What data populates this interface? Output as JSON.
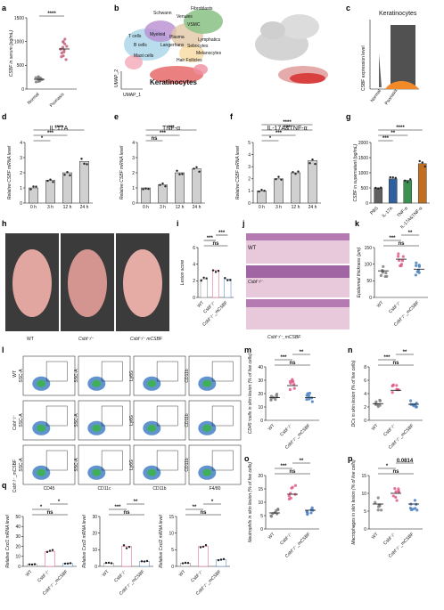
{
  "panels": {
    "a": "a",
    "b": "b",
    "c": "c",
    "d": "d",
    "e": "e",
    "f": "f",
    "g": "g",
    "h": "h",
    "i": "i",
    "j": "j",
    "k": "k",
    "l": "l",
    "m": "m",
    "n": "n",
    "o": "o",
    "p": "p",
    "q": "q"
  },
  "colors": {
    "normal": "#808080",
    "psoriasis": "#c0607a",
    "pbs": "#606060",
    "il17": "#3060a0",
    "tnf": "#3c9050",
    "combo": "#c07020",
    "wt": "#808080",
    "ko": "#e05a8a",
    "mcsbf": "#4a7fc0",
    "bar": "#d0d0d0",
    "bargray": "#e0e0e0"
  },
  "chart_data": [
    {
      "id": "a",
      "type": "scatter",
      "ylabel": "CSBF in serum  (pg/mL)",
      "categories": [
        "Normal",
        "Psoriasis"
      ],
      "ylim": [
        0,
        1500
      ],
      "yticks": [
        "0",
        "500",
        "1000",
        "1500"
      ],
      "sig": "****",
      "series": [
        {
          "values": [
            180,
            220,
            150,
            260,
            200,
            240,
            170,
            230,
            210,
            190,
            250,
            160
          ]
        },
        {
          "values": [
            620,
            780,
            950,
            1050,
            880,
            700,
            820,
            990,
            760,
            900,
            840,
            1000,
            680
          ]
        }
      ]
    },
    {
      "id": "b",
      "type": "scatter",
      "xlabel": "UMAP_1",
      "ylabel": "UMAP_2",
      "labels": [
        "Fibroblasts",
        "Schwann",
        "Venules",
        "VSMC",
        "T cells",
        "Myeloid",
        "Plasma",
        "Lymphatics",
        "B cells",
        "Langerhans",
        "Sebocytes",
        "Melanocytes",
        "Mast cells",
        "Hair Follicles",
        "Keratinocytes"
      ]
    },
    {
      "id": "c",
      "type": "scatter",
      "title": "Keratinocytes",
      "ylabel": "CSBF expression level",
      "categories": [
        "Normal",
        "Psoriasis"
      ]
    },
    {
      "id": "d",
      "type": "bar",
      "title": "IL-17A",
      "ylabel": "Relative CSBF mRNA level",
      "categories": [
        "0 h",
        "3 h",
        "12 h",
        "24 h"
      ],
      "values": [
        1.0,
        1.5,
        2.0,
        2.75
      ],
      "ylim": [
        0,
        4
      ],
      "yticks": [
        "0",
        "1",
        "2",
        "3",
        "4"
      ],
      "sig": [
        "*",
        "***",
        "****"
      ]
    },
    {
      "id": "e",
      "type": "bar",
      "title": "TNF-α",
      "ylabel": "Relative CSBF mRNA level",
      "categories": [
        "0 h",
        "3 h",
        "12 h",
        "24 h"
      ],
      "values": [
        1.0,
        1.2,
        2.0,
        2.25
      ],
      "ylim": [
        0,
        4
      ],
      "yticks": [
        "0",
        "1",
        "2",
        "3",
        "4"
      ],
      "sig": [
        "ns",
        "***",
        "***"
      ]
    },
    {
      "id": "f",
      "type": "bar",
      "title": "IL-17A&TNF-α",
      "ylabel": "Relative CSBF mRNA level",
      "categories": [
        "0 h",
        "3 h",
        "12 h",
        "24 h"
      ],
      "values": [
        1.0,
        2.0,
        2.5,
        3.5
      ],
      "ylim": [
        0,
        5
      ],
      "yticks": [
        "0",
        "1",
        "2",
        "3",
        "4",
        "5"
      ],
      "sig": [
        "*",
        "***",
        "***",
        "****"
      ]
    },
    {
      "id": "g",
      "type": "bar",
      "ylabel": "CSBF in supernatant (pg/mL)",
      "categories": [
        "PBS",
        "IL-17A",
        "TNF-α",
        "IL-17A&TNF-α"
      ],
      "values": [
        500,
        800,
        750,
        1300
      ],
      "ylim": [
        0,
        2000
      ],
      "yticks": [
        "0",
        "500",
        "1000",
        "1500",
        "2000"
      ],
      "sig": [
        "***",
        "**",
        "****"
      ]
    },
    {
      "id": "i",
      "type": "bar",
      "ylabel": "Lesion score",
      "categories": [
        "WT",
        "Csbf⁻/⁻",
        "Csbf⁻/⁻_mCSBF"
      ],
      "values": [
        2.2,
        3.3,
        2.2
      ],
      "ylim": [
        0,
        6
      ],
      "yticks": [
        "0",
        "2",
        "4",
        "6"
      ],
      "sig": [
        "ns",
        "***",
        "***",
        "****"
      ]
    },
    {
      "id": "k",
      "type": "scatter",
      "ylabel": "Epidermal thickness (μm)",
      "categories": [
        "WT",
        "Csbf⁻/⁻",
        "Csbf⁻/⁻_mCSBF"
      ],
      "means": [
        80,
        115,
        85
      ],
      "ylim": [
        0,
        150
      ],
      "yticks": [
        "0",
        "50",
        "100",
        "150"
      ],
      "sig": [
        "ns",
        "***",
        "**"
      ]
    },
    {
      "id": "m",
      "type": "scatter",
      "ylabel": "CD45⁺cells in skin lesion (% of live cells)",
      "categories": [
        "WT",
        "Csbf⁻/⁻",
        "Csbf⁻/⁻_mCSBF"
      ],
      "means": [
        17,
        26,
        17
      ],
      "ylim": [
        0,
        40
      ],
      "yticks": [
        "0",
        "10",
        "20",
        "30",
        "40"
      ],
      "sig": [
        "ns",
        "***",
        "**"
      ]
    },
    {
      "id": "n",
      "type": "scatter",
      "ylabel": "DCs in skin lesion (% of live cells)",
      "categories": [
        "WT",
        "Csbf⁻/⁻",
        "Csbf⁻/⁻_mCSBF"
      ],
      "means": [
        2.5,
        4.5,
        2.4
      ],
      "ylim": [
        0,
        8
      ],
      "yticks": [
        "0",
        "2",
        "4",
        "6",
        "8"
      ],
      "sig": [
        "ns",
        "***",
        "**"
      ]
    },
    {
      "id": "o",
      "type": "scatter",
      "ylabel": "Neutrophils in skin lesion (% of live cells)",
      "categories": [
        "WT",
        "Csbf⁻/⁻",
        "Csbf⁻/⁻_mCSBF"
      ],
      "means": [
        6,
        13,
        7
      ],
      "ylim": [
        0,
        20
      ],
      "yticks": [
        "0",
        "5",
        "10",
        "15",
        "20"
      ],
      "sig": [
        "ns",
        "***",
        "**"
      ]
    },
    {
      "id": "p",
      "type": "scatter",
      "ylabel": "Macrophages in skin lesion (% of live cells)",
      "categories": [
        "WT",
        "Csbf⁻/⁻",
        "Csbf⁻/⁻_mCSBF"
      ],
      "means": [
        7,
        10,
        7
      ],
      "ylim": [
        0,
        15
      ],
      "yticks": [
        "0",
        "5",
        "10",
        "15"
      ],
      "sig": [
        "ns",
        "*",
        "0.0814"
      ]
    },
    {
      "id": "q1",
      "type": "bar",
      "ylabel": "Relative Cxcl1 mRNA level",
      "categories": [
        "WT",
        "Csbf⁻/⁻",
        "Csbf⁻/⁻_mCSBF"
      ],
      "values": [
        2,
        15,
        3
      ],
      "ylim": [
        0,
        50
      ],
      "yticks": [
        "0",
        "10",
        "20",
        "30",
        "40",
        "50"
      ],
      "sig": [
        "ns",
        "*",
        "*"
      ]
    },
    {
      "id": "q2",
      "type": "bar",
      "ylabel": "Relative Cxcl2 mRNA level",
      "categories": [
        "WT",
        "Csbf⁻/⁻",
        "Csbf⁻/⁻_mCSBF"
      ],
      "values": [
        2,
        12,
        3
      ],
      "ylim": [
        0,
        30
      ],
      "yticks": [
        "0",
        "10",
        "20",
        "30"
      ],
      "sig": [
        "ns",
        "***",
        "**"
      ]
    },
    {
      "id": "q3",
      "type": "bar",
      "ylabel": "Relative Cxcl2 mRNA level",
      "categories": [
        "WT",
        "Csbf⁻/⁻",
        "Csbf⁻/⁻_mCSBF"
      ],
      "values": [
        1,
        6,
        2
      ],
      "ylim": [
        0,
        15
      ],
      "yticks": [
        "0",
        "5",
        "10",
        "15"
      ],
      "sig": [
        "ns",
        "**",
        "*"
      ]
    }
  ],
  "photos_h": {
    "labels": [
      "WT",
      "Csbf⁻/⁻",
      "Csbf⁻/⁻ mCSBF"
    ]
  },
  "histo_j": {
    "labels": [
      "WT",
      "Csbf⁻/⁻",
      "Csbf⁻/⁻_mCSBF"
    ]
  },
  "flow_l": {
    "rows": [
      "WT",
      "Csbf⁻/⁻",
      "Csbf⁻/⁻_mCSBF"
    ],
    "xlabels": [
      "CD45",
      "CD11c",
      "CD11b",
      "F4/80"
    ],
    "ylabels": [
      "SSC-A",
      "SSC-A",
      "Ly6G",
      "CD11b"
    ]
  }
}
